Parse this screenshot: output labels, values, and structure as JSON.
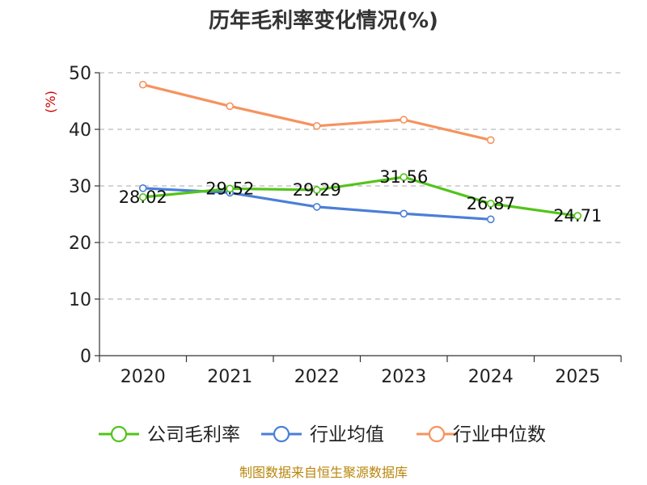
{
  "chart_data": {
    "type": "line",
    "title": "历年毛利率变化情况(%)",
    "ylabel": "(%)",
    "xlabel": "",
    "categories": [
      "2020",
      "2021",
      "2022",
      "2023",
      "2024",
      "2025"
    ],
    "ylim": [
      0,
      50
    ],
    "yticks": [
      0,
      10,
      20,
      30,
      40,
      50
    ],
    "grid": "horizontal dashed",
    "legend": "bottom",
    "series": [
      {
        "name": "公司毛利率",
        "color": "#52c41a",
        "values": [
          28.02,
          29.52,
          29.29,
          31.56,
          26.87,
          24.71
        ],
        "labels": [
          "28.02",
          "29.52",
          "29.29",
          "31.56",
          "26.87",
          "24.71"
        ]
      },
      {
        "name": "行业均值",
        "color": "#4a7fd6",
        "values": [
          29.6,
          28.8,
          26.3,
          25.1,
          24.1,
          null
        ]
      },
      {
        "name": "行业中位数",
        "color": "#f5935e",
        "values": [
          47.9,
          44.1,
          40.6,
          41.7,
          38.1,
          null
        ]
      }
    ]
  },
  "source": "制图数据来自恒生聚源数据库"
}
